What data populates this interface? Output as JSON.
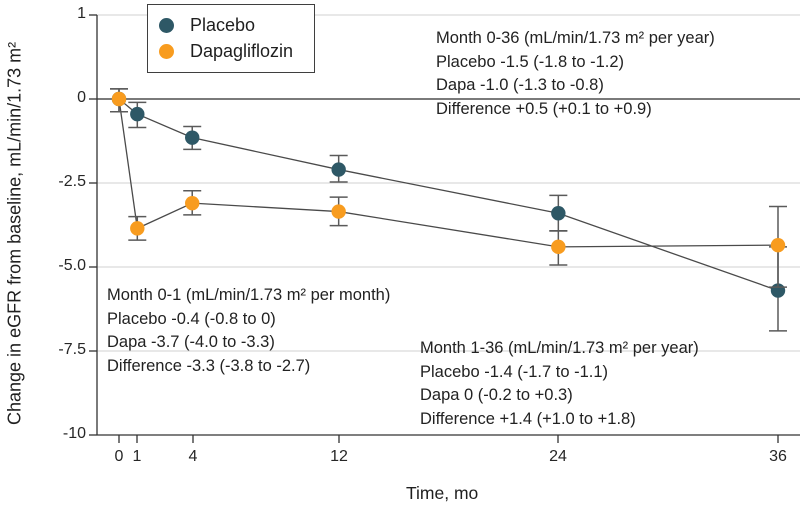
{
  "chart_data": {
    "type": "line",
    "title": "",
    "xlabel": "Time, mo",
    "ylabel": "Change in eGFR from baseline, mL/min/1.73 m²",
    "x_tick_labels": [
      "0",
      "1",
      "4",
      "12",
      "24",
      "36"
    ],
    "y_tick_labels": [
      "1",
      "0",
      "-2.5",
      "-5.0",
      "-7.5",
      "-10"
    ],
    "x_ticks": [
      0,
      1,
      4,
      12,
      24,
      36
    ],
    "y_ticks": [
      1,
      0,
      -2.5,
      -5.0,
      -7.5,
      -10
    ],
    "ylim": [
      -10,
      1
    ],
    "xlim": [
      0,
      36
    ],
    "grid": true,
    "legend_position": "top-left-inside",
    "colors": {
      "placebo": "#2e5866",
      "dapagliflozin": "#f89c1f",
      "connector_line": "#4a4a4a",
      "error_bar": "#5a5a5a",
      "grid_light": "#d9d9d9",
      "zero_line": "#2b2b2b",
      "axis": "#333333"
    },
    "series": [
      {
        "name": "Placebo",
        "color": "#2e5866",
        "x": [
          0,
          1,
          4,
          12,
          24,
          36
        ],
        "y": [
          0,
          -0.45,
          -1.15,
          -2.1,
          -3.4,
          -5.7
        ],
        "ci_high": [
          0.3,
          -0.1,
          -0.82,
          -1.68,
          -2.87,
          -4.4
        ],
        "ci_low": [
          -0.38,
          -0.85,
          -1.5,
          -2.47,
          -3.93,
          -6.9
        ]
      },
      {
        "name": "Dapagliflozin",
        "color": "#f89c1f",
        "x": [
          0,
          1,
          4,
          12,
          24,
          36
        ],
        "y": [
          0,
          -3.85,
          -3.1,
          -3.35,
          -4.4,
          -4.35
        ],
        "ci_high": [
          0.3,
          -3.5,
          -2.73,
          -2.92,
          -3.92,
          -3.2
        ],
        "ci_low": [
          -0.38,
          -4.2,
          -3.45,
          -3.77,
          -4.94,
          -5.6
        ]
      }
    ],
    "annotations": [
      {
        "lines": [
          "Month 0-36 (mL/min/1.73 m² per year)",
          "Placebo -1.5 (-1.8 to -1.2)",
          "Dapa -1.0 (-1.3 to -0.8)",
          "Difference +0.5 (+0.1 to +0.9)"
        ]
      },
      {
        "lines": [
          "Month 0-1 (mL/min/1.73 m² per month)",
          "Placebo -0.4 (-0.8 to 0)",
          "Dapa -3.7 (-4.0 to -3.3)",
          "Difference -3.3 (-3.8 to -2.7)"
        ]
      },
      {
        "lines": [
          "Month 1-36 (mL/min/1.73 m² per year)",
          "Placebo -1.4 (-1.7 to -1.1)",
          "Dapa 0 (-0.2 to +0.3)",
          "Difference +1.4 (+1.0 to +1.8)"
        ]
      }
    ]
  }
}
